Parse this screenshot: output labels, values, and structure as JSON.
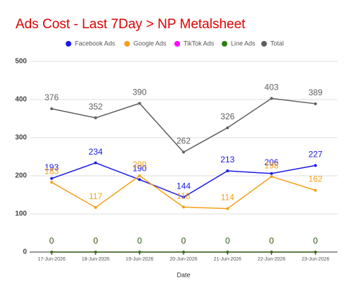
{
  "chart_data": {
    "type": "line",
    "title": "Ads Cost - Last 7Day > NP Metalsheet",
    "x_label": "Date",
    "categories": [
      "17-Jun-2026",
      "18-Jun-2026",
      "19-Jun-2026",
      "20-Jun-2026",
      "21-Jun-2026",
      "22-Jun-2026",
      "23-Jun-2026"
    ],
    "series": [
      {
        "name": "Facebook Ads",
        "color": "#1a1ae6",
        "values": [
          193,
          234,
          190,
          144,
          213,
          206,
          227
        ]
      },
      {
        "name": "Google Ads",
        "color": "#f4a019",
        "values": [
          183,
          117,
          200,
          118,
          114,
          198,
          162
        ]
      },
      {
        "name": "TikTok Ads",
        "color": "#ff00ff",
        "values": [
          0,
          0,
          0,
          0,
          0,
          0,
          0
        ]
      },
      {
        "name": "Line Ads",
        "color": "#2e7d10",
        "values": [
          0,
          0,
          0,
          0,
          0,
          0,
          0
        ]
      },
      {
        "name": "Total",
        "color": "#5f5f5f",
        "values": [
          376,
          352,
          390,
          262,
          326,
          403,
          389
        ]
      }
    ],
    "ylim": [
      0,
      500
    ],
    "yticks": [
      0,
      100,
      200,
      300,
      400,
      500
    ],
    "grid": true
  }
}
